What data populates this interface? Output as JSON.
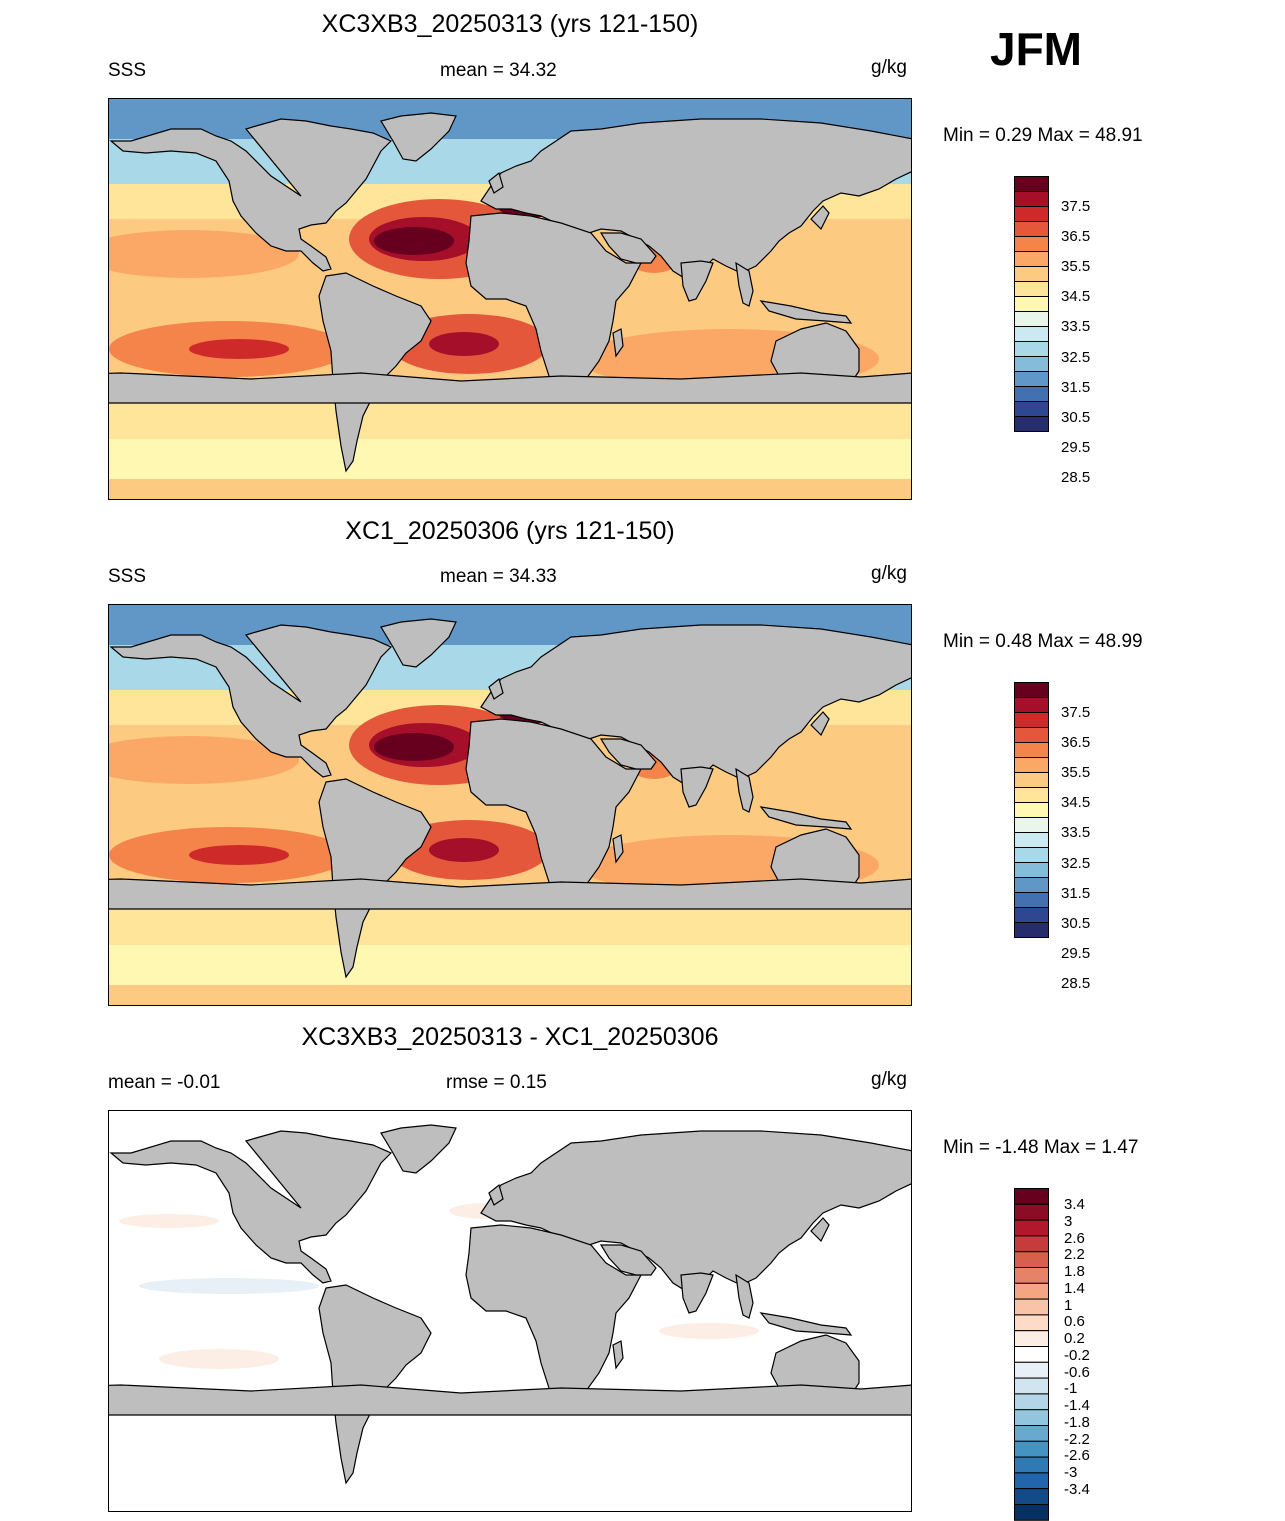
{
  "season": "JFM",
  "units": "g/kg",
  "panels": [
    {
      "title": "XC3XB3_20250313 (yrs 121-150)",
      "left_label": "SSS",
      "center_label": "mean =  34.32",
      "right_label": "g/kg",
      "minmax": "Min =   0.29 Max =  48.91",
      "kind": "field"
    },
    {
      "title": "XC1_20250306 (yrs 121-150)",
      "left_label": "SSS",
      "center_label": "mean =  34.33",
      "right_label": "g/kg",
      "minmax": "Min =   0.48 Max =  48.99",
      "kind": "field"
    },
    {
      "title": "XC3XB3_20250313 - XC1_20250306",
      "left_label": "mean =  -0.01",
      "center_label": "rmse =   0.15",
      "right_label": "g/kg",
      "minmax": "Min =  -1.48 Max =   1.47",
      "kind": "diff"
    }
  ],
  "field_colorbar": {
    "labels": [
      "37.5",
      "36.5",
      "35.5",
      "34.5",
      "33.5",
      "32.5",
      "31.5",
      "30.5",
      "29.5",
      "28.5"
    ],
    "colors": [
      "#67001f",
      "#a50f2a",
      "#cf2a2a",
      "#e5573a",
      "#f4844a",
      "#fba867",
      "#fdca81",
      "#fee599",
      "#fff8b3",
      "#e9f6ec",
      "#cbe9f0",
      "#a9d8e8",
      "#84bcda",
      "#6097c6",
      "#4270b0",
      "#2e4790",
      "#262d6c"
    ]
  },
  "diff_colorbar": {
    "labels": [
      "3.4",
      "3",
      "2.6",
      "2.2",
      "1.8",
      "1.4",
      "1",
      "0.6",
      "0.2",
      "-0.2",
      "-0.6",
      "-1",
      "-1.4",
      "-1.8",
      "-2.2",
      "-2.6",
      "-3",
      "-3.4"
    ],
    "colors": [
      "#67001f",
      "#8c0c25",
      "#b2182b",
      "#c43c3c",
      "#d6604d",
      "#e58267",
      "#f4a582",
      "#f8c3a6",
      "#fddbc7",
      "#fdeee5",
      "#ffffff",
      "#e6f0f6",
      "#d1e5f0",
      "#b4d5e8",
      "#92c5de",
      "#6aa9cf",
      "#4393c3",
      "#2f79b5",
      "#2166ac",
      "#134b87",
      "#053061"
    ]
  },
  "colors": {
    "land": "#bebebe",
    "coast": "#000000"
  }
}
